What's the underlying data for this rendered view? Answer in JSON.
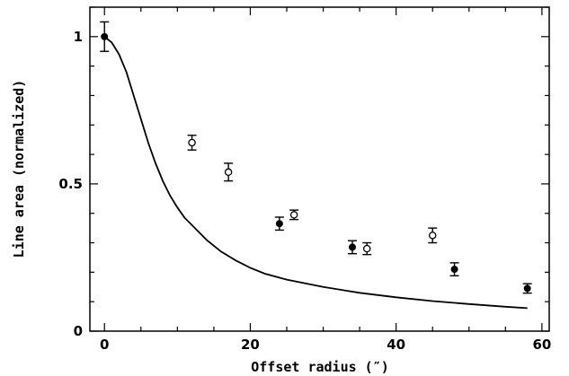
{
  "chart_data": {
    "type": "scatter",
    "xlabel": "Offset radius (″)",
    "ylabel": "Line area (normalized)",
    "xlim": [
      -2,
      61
    ],
    "ylim": [
      0,
      1.1
    ],
    "xticks": {
      "major": [
        0,
        20,
        40,
        60
      ],
      "labels": [
        "0",
        "20",
        "40",
        "60"
      ],
      "minor_step": 5
    },
    "yticks": {
      "major": [
        0,
        0.5,
        1
      ],
      "labels": [
        "0",
        "0.5",
        "1"
      ],
      "minor_step": 0.1
    },
    "grid": false,
    "series": [
      {
        "marker": "filled-circle",
        "points": [
          {
            "x": 0,
            "y": 1.0,
            "err": 0.05
          },
          {
            "x": 24,
            "y": 0.365,
            "err": 0.022
          },
          {
            "x": 34,
            "y": 0.285,
            "err": 0.022
          },
          {
            "x": 48,
            "y": 0.21,
            "err": 0.022
          },
          {
            "x": 58,
            "y": 0.145,
            "err": 0.016
          }
        ]
      },
      {
        "marker": "open-circle",
        "points": [
          {
            "x": 12,
            "y": 0.64,
            "err": 0.025
          },
          {
            "x": 17,
            "y": 0.54,
            "err": 0.03
          },
          {
            "x": 26,
            "y": 0.395,
            "err": 0.016
          },
          {
            "x": 36,
            "y": 0.28,
            "err": 0.02
          },
          {
            "x": 45,
            "y": 0.325,
            "err": 0.025
          }
        ]
      },
      {
        "marker": "line",
        "points": [
          {
            "x": 0,
            "y": 1.0
          },
          {
            "x": 1,
            "y": 0.98
          },
          {
            "x": 2,
            "y": 0.94
          },
          {
            "x": 3,
            "y": 0.88
          },
          {
            "x": 4,
            "y": 0.8
          },
          {
            "x": 5,
            "y": 0.72
          },
          {
            "x": 6,
            "y": 0.64
          },
          {
            "x": 7,
            "y": 0.57
          },
          {
            "x": 8,
            "y": 0.51
          },
          {
            "x": 9,
            "y": 0.46
          },
          {
            "x": 10,
            "y": 0.42
          },
          {
            "x": 11,
            "y": 0.385
          },
          {
            "x": 12,
            "y": 0.36
          },
          {
            "x": 14,
            "y": 0.31
          },
          {
            "x": 16,
            "y": 0.27
          },
          {
            "x": 18,
            "y": 0.24
          },
          {
            "x": 20,
            "y": 0.215
          },
          {
            "x": 22,
            "y": 0.195
          },
          {
            "x": 25,
            "y": 0.175
          },
          {
            "x": 30,
            "y": 0.15
          },
          {
            "x": 35,
            "y": 0.13
          },
          {
            "x": 40,
            "y": 0.115
          },
          {
            "x": 45,
            "y": 0.102
          },
          {
            "x": 50,
            "y": 0.092
          },
          {
            "x": 55,
            "y": 0.083
          },
          {
            "x": 58,
            "y": 0.078
          }
        ]
      }
    ]
  }
}
